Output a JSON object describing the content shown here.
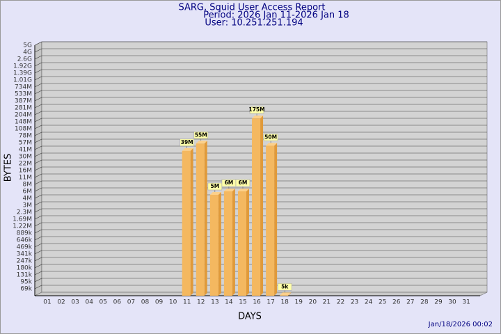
{
  "chart_data": {
    "type": "bar",
    "title": "SARG, Squid User Access Report",
    "subtitle": "Period: 2026 Jan 11-2026 Jan 18",
    "user": "User: 10.251.251.194",
    "x_label": "DAYS",
    "y_label": "BYTES",
    "footer": "Jan/18/2026 00:02",
    "categories": [
      "01",
      "02",
      "03",
      "04",
      "05",
      "06",
      "07",
      "08",
      "09",
      "10",
      "11",
      "12",
      "13",
      "14",
      "15",
      "16",
      "17",
      "18",
      "19",
      "20",
      "21",
      "22",
      "23",
      "24",
      "25",
      "26",
      "27",
      "28",
      "29",
      "30",
      "31"
    ],
    "values": [
      null,
      null,
      null,
      null,
      null,
      null,
      null,
      null,
      null,
      null,
      39000000,
      55000000,
      5000000,
      6000000,
      6000000,
      175000000,
      50000000,
      5000,
      null,
      null,
      null,
      null,
      null,
      null,
      null,
      null,
      null,
      null,
      null,
      null,
      null
    ],
    "value_labels": [
      null,
      null,
      null,
      null,
      null,
      null,
      null,
      null,
      null,
      null,
      "39M",
      "55M",
      "5M",
      "6M",
      "6M",
      "175M",
      "50M",
      "5k",
      null,
      null,
      null,
      null,
      null,
      null,
      null,
      null,
      null,
      null,
      null,
      null,
      null
    ],
    "color": "#f4b860",
    "ylim": [
      0,
      5000000000
    ],
    "yticks": [
      {
        "value": 5000000000,
        "label": "5G"
      },
      {
        "value": 4000000000,
        "label": "4G"
      },
      {
        "value": 2600000000,
        "label": "2.6G"
      },
      {
        "value": 1920000000,
        "label": "1.92G"
      },
      {
        "value": 1390000000,
        "label": "1.39G"
      },
      {
        "value": 1010000000,
        "label": "1.01G"
      },
      {
        "value": 734000000,
        "label": "734M"
      },
      {
        "value": 533000000,
        "label": "533M"
      },
      {
        "value": 387000000,
        "label": "387M"
      },
      {
        "value": 281000000,
        "label": "281M"
      },
      {
        "value": 204000000,
        "label": "204M"
      },
      {
        "value": 148000000,
        "label": "148M"
      },
      {
        "value": 108000000,
        "label": "108M"
      },
      {
        "value": 78000000,
        "label": "78M"
      },
      {
        "value": 57000000,
        "label": "57M"
      },
      {
        "value": 41000000,
        "label": "41M"
      },
      {
        "value": 30000000,
        "label": "30M"
      },
      {
        "value": 22000000,
        "label": "22M"
      },
      {
        "value": 16000000,
        "label": "16M"
      },
      {
        "value": 11000000,
        "label": "11M"
      },
      {
        "value": 8000000,
        "label": "8M"
      },
      {
        "value": 6000000,
        "label": "6M"
      },
      {
        "value": 4000000,
        "label": "4M"
      },
      {
        "value": 3000000,
        "label": "3M"
      },
      {
        "value": 2300000,
        "label": "2.3M"
      },
      {
        "value": 1690000,
        "label": "1.69M"
      },
      {
        "value": 1220000,
        "label": "1.22M"
      },
      {
        "value": 889000,
        "label": "889k"
      },
      {
        "value": 646000,
        "label": "646k"
      },
      {
        "value": 469000,
        "label": "469k"
      },
      {
        "value": 341000,
        "label": "341k"
      },
      {
        "value": 247000,
        "label": "247k"
      },
      {
        "value": 180000,
        "label": "180k"
      },
      {
        "value": 131000,
        "label": "131k"
      },
      {
        "value": 95000,
        "label": "95k"
      },
      {
        "value": 69000,
        "label": "69k"
      }
    ],
    "grid": true
  }
}
